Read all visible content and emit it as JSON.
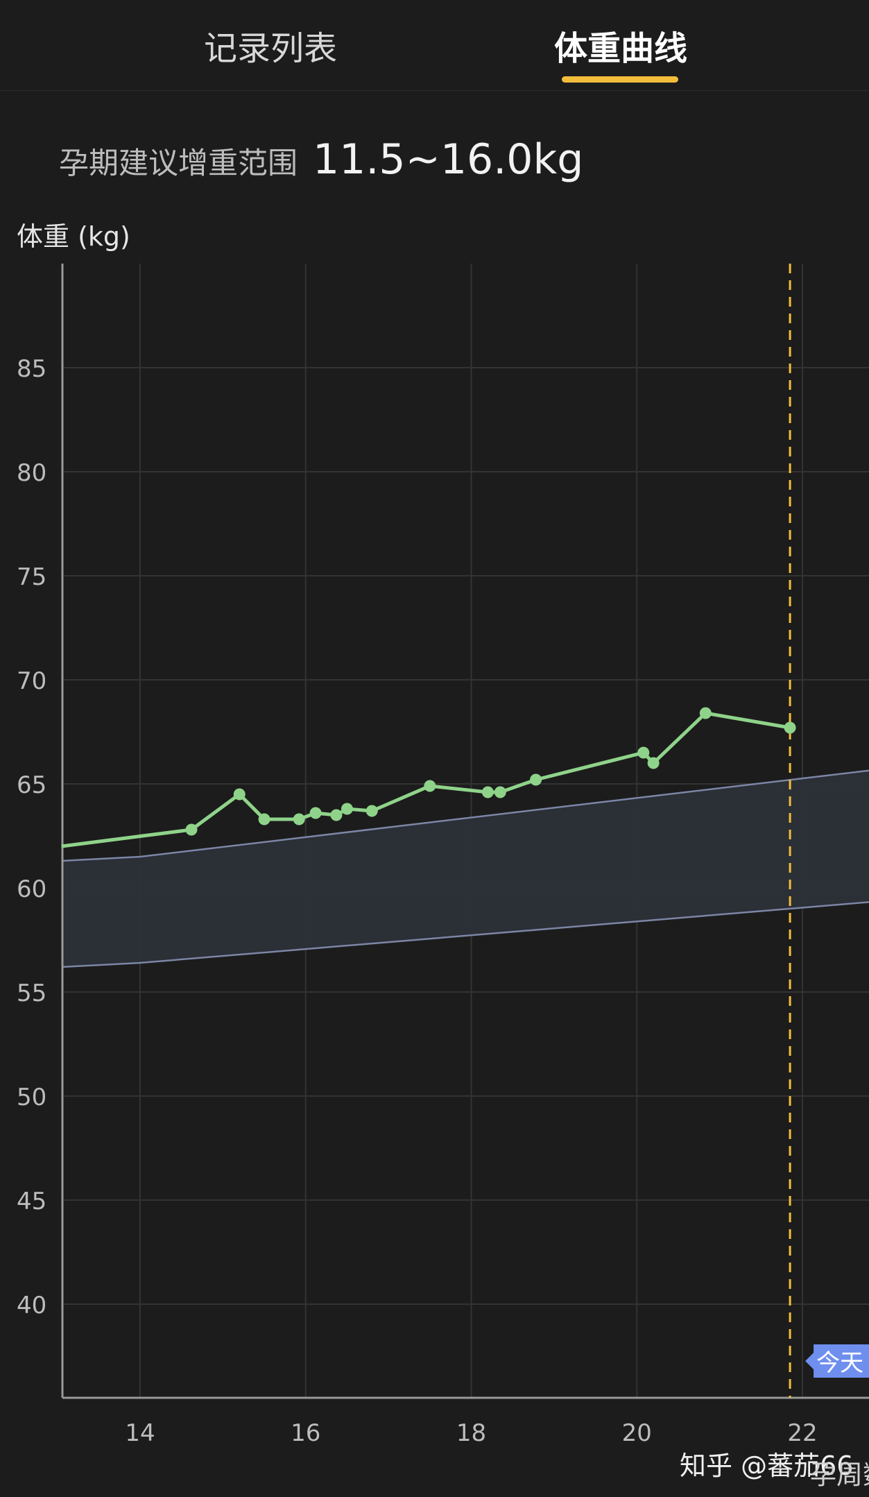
{
  "tabs": [
    {
      "label": "记录列表",
      "active": false
    },
    {
      "label": "体重曲线",
      "active": true
    }
  ],
  "range": {
    "label": "孕期建议增重范围",
    "value": "11.5~16.0kg"
  },
  "today_label": "今天",
  "watermark": "知乎 @蕃茄66",
  "x_axis_label_partial": "孕周数",
  "colors": {
    "accent": "#f3bd3c",
    "series": "#8fd38a",
    "band_fill": "#2c3038",
    "band_line": "#7c86a6",
    "today_badge": "#6f8fef"
  },
  "chart_data": {
    "type": "line",
    "ylabel": "体重 (kg)",
    "xlabel": "孕周数",
    "xlim": [
      13.05,
      23.35
    ],
    "ylim": [
      35,
      90
    ],
    "xticks": [
      14,
      16,
      18,
      20,
      22
    ],
    "yticks": [
      40,
      45,
      50,
      55,
      60,
      65,
      70,
      75,
      80,
      85
    ],
    "grid": true,
    "today_week": 21.85,
    "series": [
      {
        "x": [
          13.05,
          14.62,
          15.2,
          15.5,
          15.92,
          16.12,
          16.37,
          16.5,
          16.8,
          17.5,
          18.2,
          18.35,
          18.78,
          20.08,
          20.2,
          20.83,
          21.85
        ],
        "y": [
          62.0,
          62.8,
          64.5,
          63.3,
          63.3,
          63.6,
          63.5,
          63.8,
          63.7,
          64.9,
          64.6,
          64.6,
          65.2,
          66.5,
          66.0,
          68.4,
          67.7
        ]
      }
    ],
    "band": {
      "x": [
        13.05,
        14.0,
        23.35
      ],
      "upper": [
        61.3,
        61.5,
        65.9
      ],
      "lower": [
        56.2,
        56.4,
        59.5
      ]
    }
  }
}
